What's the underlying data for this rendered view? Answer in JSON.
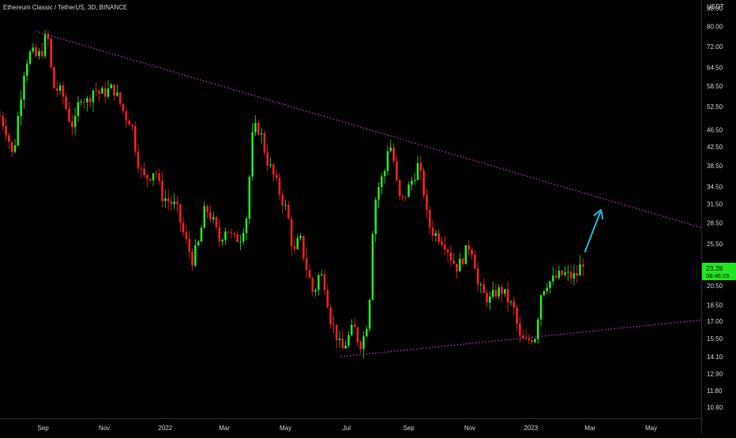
{
  "header": {
    "title": "Ethereum Classic / TetherUS, 3D, BINANCE"
  },
  "price_axis": {
    "unit": "USDT",
    "ticks": [
      "88.00",
      "80.00",
      "72.00",
      "64.50",
      "58.50",
      "52.50",
      "46.50",
      "42.50",
      "38.50",
      "34.50",
      "31.50",
      "28.50",
      "25.50",
      "20.50",
      "18.50",
      "17.00",
      "15.50",
      "14.10",
      "12.90",
      "11.80",
      "10.80"
    ],
    "current_price": "23.28",
    "countdown": "08:46:23"
  },
  "time_axis": {
    "labels": [
      "Sep",
      "Nov",
      "2022",
      "Mar",
      "May",
      "Jul",
      "Sep",
      "Nov",
      "2023",
      "Mar",
      "May"
    ]
  },
  "colors": {
    "background": "#000000",
    "up_candle": "#1fe61f",
    "down_candle": "#ff1e1e",
    "trendline": "#b03ab4",
    "arrow": "#2aa9c9",
    "axis_text": "#d1d4dc",
    "price_tag": "#1fe61f"
  },
  "chart_data": {
    "type": "candlestick",
    "scale": "log",
    "title": "Ethereum Classic / TetherUS, 3D, BINANCE",
    "ylabel": "USDT",
    "xlabel": "",
    "ylim": [
      10.2,
      92
    ],
    "x_range": [
      "2021-07-20",
      "2023-06-20"
    ],
    "grid": false,
    "close_path": [
      [
        "2021-07-20",
        50.0
      ],
      [
        "2021-07-27",
        46.0
      ],
      [
        "2021-08-02",
        40.0
      ],
      [
        "2021-08-08",
        52.0
      ],
      [
        "2021-08-14",
        66.0
      ],
      [
        "2021-08-20",
        70.0
      ],
      [
        "2021-08-26",
        68.0
      ],
      [
        "2021-09-01",
        71.0
      ],
      [
        "2021-09-05",
        79.0
      ],
      [
        "2021-09-08",
        66.0
      ],
      [
        "2021-09-12",
        58.0
      ],
      [
        "2021-09-20",
        56.5
      ],
      [
        "2021-09-26",
        50.0
      ],
      [
        "2021-10-02",
        47.0
      ],
      [
        "2021-10-08",
        56.0
      ],
      [
        "2021-10-15",
        54.0
      ],
      [
        "2021-10-22",
        58.0
      ],
      [
        "2021-10-28",
        56.0
      ],
      [
        "2021-11-04",
        57.0
      ],
      [
        "2021-11-10",
        58.0
      ],
      [
        "2021-11-16",
        54.0
      ],
      [
        "2021-11-22",
        50.0
      ],
      [
        "2021-11-28",
        48.5
      ],
      [
        "2021-12-04",
        40.0
      ],
      [
        "2021-12-10",
        36.0
      ],
      [
        "2021-12-16",
        36.5
      ],
      [
        "2021-12-22",
        38.0
      ],
      [
        "2021-12-28",
        33.0
      ],
      [
        "2022-01-04",
        32.0
      ],
      [
        "2022-01-12",
        31.0
      ],
      [
        "2022-01-20",
        26.5
      ],
      [
        "2022-01-28",
        23.5
      ],
      [
        "2022-02-03",
        25.5
      ],
      [
        "2022-02-10",
        31.0
      ],
      [
        "2022-02-17",
        29.0
      ],
      [
        "2022-02-24",
        26.0
      ],
      [
        "2022-03-03",
        28.0
      ],
      [
        "2022-03-10",
        26.0
      ],
      [
        "2022-03-17",
        26.5
      ],
      [
        "2022-03-24",
        30.0
      ],
      [
        "2022-03-28",
        44.0
      ],
      [
        "2022-04-02",
        47.5
      ],
      [
        "2022-04-06",
        46.0
      ],
      [
        "2022-04-12",
        40.0
      ],
      [
        "2022-04-18",
        37.0
      ],
      [
        "2022-04-26",
        33.0
      ],
      [
        "2022-05-03",
        30.0
      ],
      [
        "2022-05-09",
        24.0
      ],
      [
        "2022-05-15",
        26.5
      ],
      [
        "2022-05-22",
        22.5
      ],
      [
        "2022-05-29",
        19.5
      ],
      [
        "2022-06-04",
        22.0
      ],
      [
        "2022-06-10",
        20.5
      ],
      [
        "2022-06-14",
        17.5
      ],
      [
        "2022-06-20",
        16.0
      ],
      [
        "2022-06-26",
        14.5
      ],
      [
        "2022-07-02",
        15.5
      ],
      [
        "2022-07-08",
        16.5
      ],
      [
        "2022-07-14",
        15.0
      ],
      [
        "2022-07-20",
        16.0
      ],
      [
        "2022-07-24",
        19.5
      ],
      [
        "2022-07-28",
        31.0
      ],
      [
        "2022-08-02",
        34.5
      ],
      [
        "2022-08-08",
        37.5
      ],
      [
        "2022-08-12",
        44.0
      ],
      [
        "2022-08-16",
        41.0
      ],
      [
        "2022-08-20",
        35.0
      ],
      [
        "2022-08-24",
        31.5
      ],
      [
        "2022-08-30",
        33.5
      ],
      [
        "2022-09-05",
        36.0
      ],
      [
        "2022-09-10",
        38.5
      ],
      [
        "2022-09-15",
        35.0
      ],
      [
        "2022-09-20",
        28.5
      ],
      [
        "2022-09-26",
        27.0
      ],
      [
        "2022-10-02",
        26.5
      ],
      [
        "2022-10-08",
        25.5
      ],
      [
        "2022-10-14",
        23.5
      ],
      [
        "2022-10-20",
        22.5
      ],
      [
        "2022-10-26",
        24.0
      ],
      [
        "2022-11-01",
        25.5
      ],
      [
        "2022-11-05",
        24.0
      ],
      [
        "2022-11-09",
        20.5
      ],
      [
        "2022-11-15",
        19.5
      ],
      [
        "2022-11-21",
        19.0
      ],
      [
        "2022-11-27",
        19.8
      ],
      [
        "2022-12-03",
        20.0
      ],
      [
        "2022-12-09",
        19.0
      ],
      [
        "2022-12-15",
        18.0
      ],
      [
        "2022-12-21",
        15.5
      ],
      [
        "2022-12-27",
        15.2
      ],
      [
        "2023-01-02",
        15.6
      ],
      [
        "2023-01-06",
        15.8
      ],
      [
        "2023-01-10",
        19.5
      ],
      [
        "2023-01-16",
        20.8
      ],
      [
        "2023-01-22",
        21.0
      ],
      [
        "2023-01-28",
        21.5
      ],
      [
        "2023-02-03",
        21.8
      ],
      [
        "2023-02-09",
        21.5
      ],
      [
        "2023-02-15",
        21.5
      ],
      [
        "2023-02-19",
        22.6
      ],
      [
        "2023-02-22",
        23.28
      ]
    ],
    "annotations": {
      "upper_trendline": {
        "from": [
          "2021-08-25",
          78.0
        ],
        "to": [
          "2023-06-20",
          27.8
        ]
      },
      "lower_trendline": {
        "from": [
          "2022-06-25",
          14.1
        ],
        "to": [
          "2023-06-20",
          17.1
        ]
      },
      "arrow": {
        "from": [
          "2023-02-24",
          24.5
        ],
        "to": [
          "2023-03-12",
          30.5
        ]
      }
    }
  }
}
